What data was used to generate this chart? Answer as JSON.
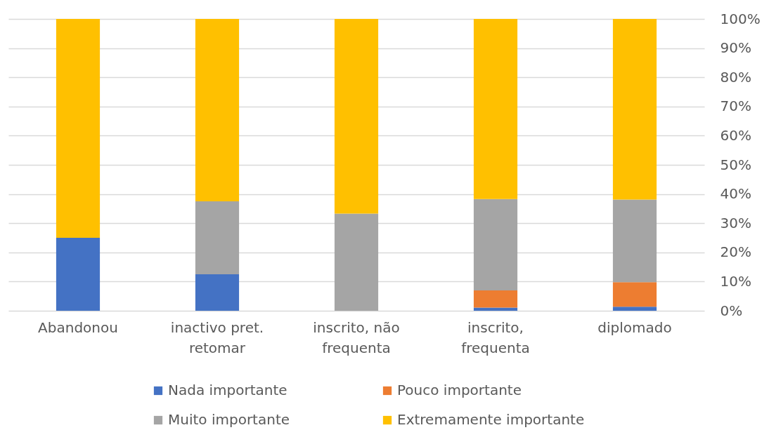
{
  "chart_data": {
    "type": "bar",
    "stacked": true,
    "categories": [
      "Abandonou",
      "inactivo pret. retomar",
      "inscrito, não frequenta",
      "inscrito, frequenta",
      "diplomado"
    ],
    "series": [
      {
        "name": "Nada importante",
        "color": "#4472c4",
        "values": [
          25,
          12.5,
          0,
          1.1,
          1.4
        ]
      },
      {
        "name": "Pouco importante",
        "color": "#ed7d31",
        "values": [
          0,
          0,
          0,
          5.9,
          8.4
        ]
      },
      {
        "name": "Muito importante",
        "color": "#a5a5a5",
        "values": [
          0,
          25,
          33.3,
          31.3,
          28.3
        ]
      },
      {
        "name": "Extremamente importante",
        "color": "#ffc000",
        "values": [
          75,
          62.5,
          66.7,
          61.7,
          61.9
        ]
      }
    ],
    "ylim": [
      0,
      100
    ],
    "yticks": [
      {
        "value": 0,
        "label": "0%"
      },
      {
        "value": 10,
        "label": "10%"
      },
      {
        "value": 20,
        "label": "20%"
      },
      {
        "value": 30,
        "label": "30%"
      },
      {
        "value": 40,
        "label": "40%"
      },
      {
        "value": 50,
        "label": "50%"
      },
      {
        "value": 60,
        "label": "60%"
      },
      {
        "value": 70,
        "label": "70%"
      },
      {
        "value": 80,
        "label": "80%"
      },
      {
        "value": 90,
        "label": "90%"
      },
      {
        "value": 100,
        "label": "100%"
      }
    ],
    "grid": "y",
    "legend": "bottom"
  }
}
